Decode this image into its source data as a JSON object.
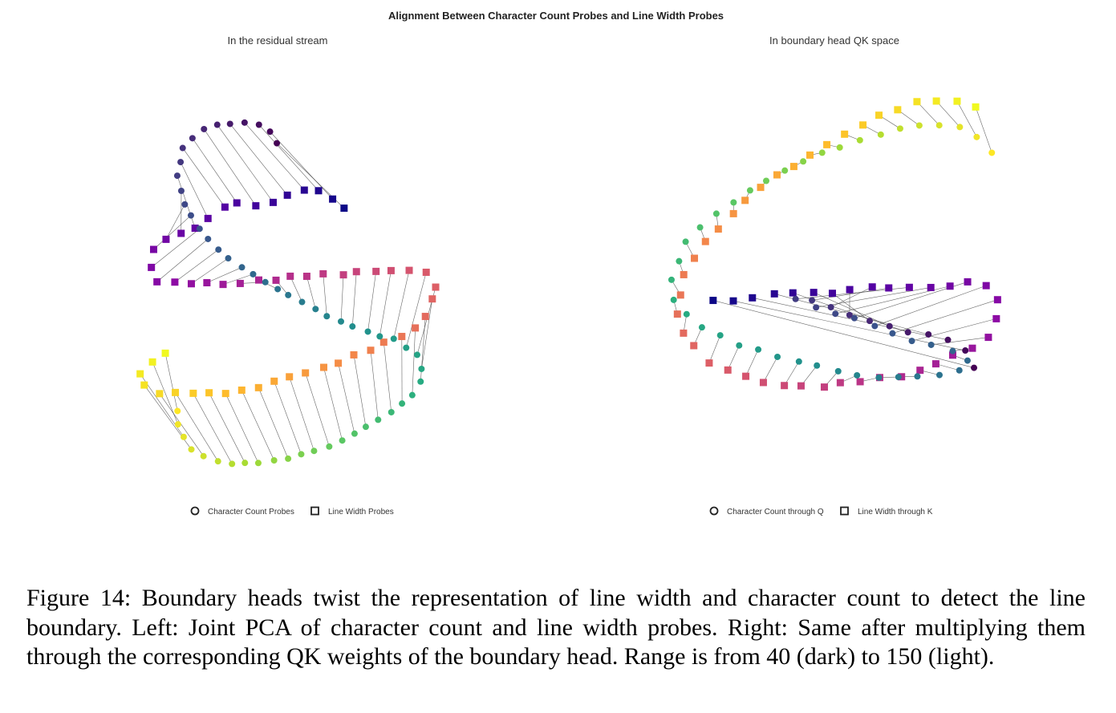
{
  "figure": {
    "title": "Alignment Between Character Count Probes and Line Width Probes",
    "caption": "Figure 14: Boundary heads twist the representation of line width and character count to detect the line boundary. Left: Joint PCA of character count and line width probes. Right: Same after multiplying them through the corresponding QK weights of the boundary head. Range is from 40 (dark) to 150 (light)."
  },
  "colormap": "viridis-plasma",
  "chart_data": [
    {
      "type": "scatter",
      "title": "In the residual stream",
      "range": [
        40,
        150
      ],
      "legend": {
        "placement": "bottom",
        "entries": [
          {
            "label": "Character Count Probes",
            "marker": "circle"
          },
          {
            "label": "Line Width Probes",
            "marker": "square"
          }
        ]
      },
      "circle_curve": [
        [
          346,
          180
        ],
        [
          330,
          157
        ],
        [
          296,
          152
        ],
        [
          258,
          157
        ],
        [
          228,
          182
        ],
        [
          222,
          222
        ],
        [
          231,
          258
        ],
        [
          250,
          288
        ],
        [
          285,
          322
        ],
        [
          330,
          352
        ],
        [
          380,
          380
        ],
        [
          440,
          408
        ],
        [
          495,
          425
        ],
        [
          522,
          445
        ],
        [
          528,
          470
        ],
        [
          515,
          492
        ],
        [
          470,
          525
        ],
        [
          410,
          558
        ],
        [
          340,
          575
        ],
        [
          280,
          578
        ],
        [
          242,
          565
        ],
        [
          225,
          540
        ],
        [
          220,
          512
        ]
      ],
      "square_curve": [
        [
          430,
          261
        ],
        [
          405,
          237
        ],
        [
          370,
          240
        ],
        [
          335,
          255
        ],
        [
          290,
          253
        ],
        [
          262,
          272
        ],
        [
          240,
          287
        ],
        [
          212,
          292
        ],
        [
          194,
          310
        ],
        [
          190,
          330
        ],
        [
          195,
          352
        ],
        [
          240,
          354
        ],
        [
          300,
          352
        ],
        [
          370,
          344
        ],
        [
          430,
          340
        ],
        [
          490,
          337
        ],
        [
          530,
          340
        ],
        [
          545,
          358
        ],
        [
          538,
          385
        ],
        [
          515,
          410
        ],
        [
          470,
          433
        ],
        [
          410,
          456
        ],
        [
          340,
          478
        ],
        [
          280,
          490
        ],
        [
          235,
          492
        ],
        [
          200,
          490
        ],
        [
          180,
          483
        ],
        [
          170,
          475
        ],
        [
          178,
          460
        ],
        [
          205,
          440
        ]
      ],
      "grid": false
    },
    {
      "type": "scatter",
      "title": "In boundary head QK space",
      "range": [
        40,
        150
      ],
      "legend": {
        "placement": "bottom",
        "entries": [
          {
            "label": "Character Count through Q",
            "marker": "circle"
          },
          {
            "label": "Line Width through K",
            "marker": "square"
          }
        ]
      },
      "circle_curve": [
        [
          1215,
          460
        ],
        [
          1205,
          440
        ],
        [
          1175,
          420
        ],
        [
          1140,
          415
        ],
        [
          1090,
          402
        ],
        [
          1050,
          390
        ],
        [
          1020,
          375
        ],
        [
          990,
          372
        ],
        [
          1030,
          387
        ],
        [
          1080,
          402
        ],
        [
          1130,
          422
        ],
        [
          1200,
          440
        ],
        [
          1210,
          458
        ],
        [
          1160,
          470
        ],
        [
          1100,
          472
        ],
        [
          1040,
          462
        ],
        [
          980,
          447
        ],
        [
          920,
          430
        ],
        [
          870,
          406
        ],
        [
          842,
          380
        ],
        [
          836,
          345
        ],
        [
          856,
          300
        ],
        [
          890,
          268
        ],
        [
          940,
          235
        ],
        [
          1000,
          200
        ],
        [
          1060,
          178
        ],
        [
          1120,
          160
        ],
        [
          1160,
          155
        ],
        [
          1200,
          160
        ],
        [
          1225,
          175
        ],
        [
          1235,
          190
        ]
      ],
      "square_curve": [
        [
          890,
          376
        ],
        [
          930,
          372
        ],
        [
          970,
          368
        ],
        [
          1010,
          366
        ],
        [
          1050,
          362
        ],
        [
          1090,
          360
        ],
        [
          1130,
          358
        ],
        [
          1170,
          357
        ],
        [
          1200,
          355
        ],
        [
          1220,
          352
        ],
        [
          1240,
          360
        ],
        [
          1245,
          375
        ],
        [
          1243,
          395
        ],
        [
          1237,
          415
        ],
        [
          1222,
          433
        ],
        [
          1185,
          442
        ],
        [
          1155,
          460
        ],
        [
          1120,
          468
        ],
        [
          1070,
          475
        ],
        [
          1010,
          482
        ],
        [
          965,
          480
        ],
        [
          915,
          467
        ],
        [
          878,
          447
        ],
        [
          855,
          420
        ],
        [
          843,
          390
        ],
        [
          847,
          360
        ],
        [
          862,
          325
        ],
        [
          890,
          290
        ],
        [
          930,
          250
        ],
        [
          980,
          212
        ],
        [
          1030,
          180
        ],
        [
          1070,
          160
        ],
        [
          1110,
          138
        ],
        [
          1150,
          127
        ],
        [
          1190,
          127
        ],
        [
          1215,
          133
        ]
      ],
      "grid": false
    }
  ]
}
